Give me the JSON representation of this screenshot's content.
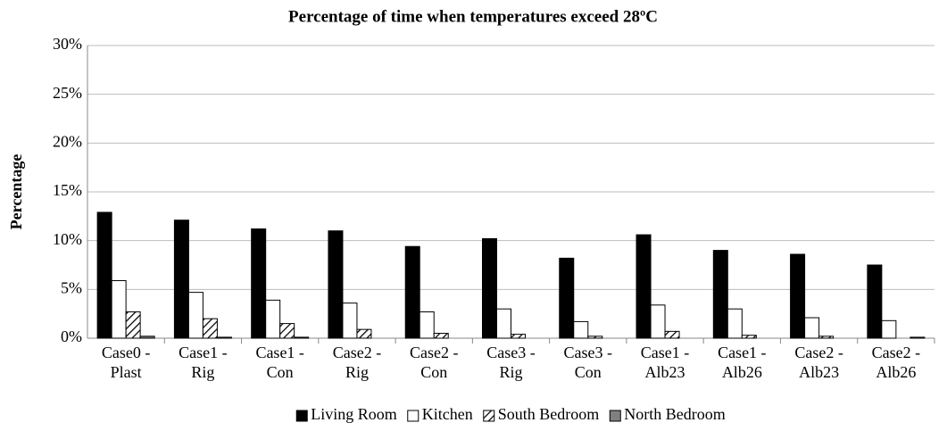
{
  "chart_data": {
    "type": "bar",
    "title": "Percentage of time when temperatures exceed 28ºC",
    "y_label": "Percentage",
    "categories": [
      [
        "Case0 -",
        "Plast"
      ],
      [
        "Case1 -",
        "Rig"
      ],
      [
        "Case1 -",
        "Con"
      ],
      [
        "Case2 -",
        "Rig"
      ],
      [
        "Case2 -",
        "Con"
      ],
      [
        "Case3 -",
        "Rig"
      ],
      [
        "Case3 -",
        "Con"
      ],
      [
        "Case1 -",
        "Alb23"
      ],
      [
        "Case1 -",
        "Alb26"
      ],
      [
        "Case2 -",
        "Alb23"
      ],
      [
        "Case2 -",
        "Alb26"
      ]
    ],
    "series": [
      {
        "name": "Living Room",
        "color": "#000000",
        "values": [
          12.9,
          12.1,
          11.2,
          11.0,
          9.4,
          10.2,
          8.2,
          10.6,
          9.0,
          8.6,
          7.5
        ]
      },
      {
        "name": "Kitchen",
        "color": "#ffffff",
        "values": [
          5.9,
          4.7,
          3.9,
          3.6,
          2.7,
          3.0,
          1.7,
          3.4,
          3.0,
          2.1,
          1.8
        ]
      },
      {
        "name": "South Bedroom",
        "color": "#ffffff",
        "pattern": "diagonal-hatch",
        "values": [
          2.7,
          2.0,
          1.5,
          0.9,
          0.5,
          0.4,
          0.2,
          0.7,
          0.3,
          0.2,
          0
        ]
      },
      {
        "name": "North Bedroom",
        "color": "#808080",
        "values": [
          0.2,
          0.1,
          0.1,
          0,
          0,
          0,
          0,
          0,
          0,
          0,
          0.1
        ]
      }
    ],
    "ylim": [
      0,
      30
    ],
    "yticks": [
      {
        "value": 0,
        "label": "0%"
      },
      {
        "value": 5,
        "label": "5%"
      },
      {
        "value": 10,
        "label": "10%"
      },
      {
        "value": 15,
        "label": "15%"
      },
      {
        "value": 20,
        "label": "20%"
      },
      {
        "value": 25,
        "label": "25%"
      },
      {
        "value": 30,
        "label": "30%"
      }
    ],
    "grid": true,
    "legend": "bottom"
  }
}
